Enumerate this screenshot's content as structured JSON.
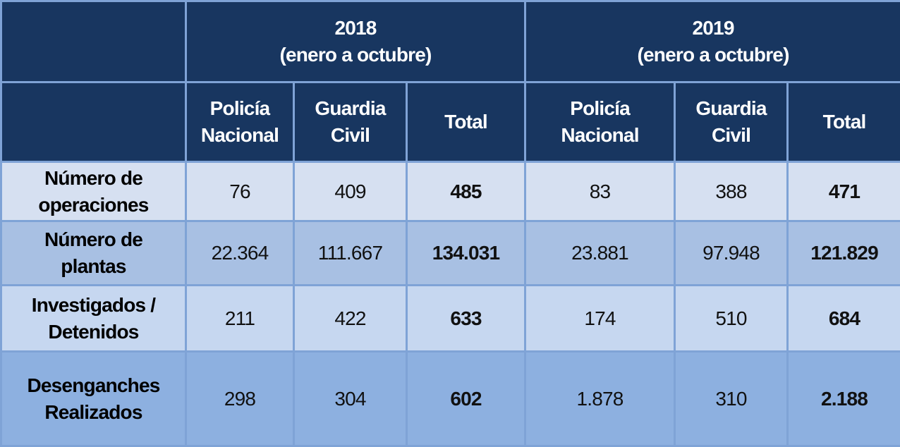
{
  "years": [
    {
      "year": "2018",
      "period": "(enero a octubre)"
    },
    {
      "year": "2019",
      "period": "(enero a octubre)"
    }
  ],
  "columns": [
    "Policía\nNacional",
    "Guardia\nCivil",
    "Total",
    "Policía\nNacional",
    "Guardia\nCivil",
    "Total"
  ],
  "rows": [
    {
      "label": "Número de\noperaciones",
      "values": [
        "76",
        "409",
        "485",
        "83",
        "388",
        "471"
      ]
    },
    {
      "label": "Número de\nplantas",
      "values": [
        "22.364",
        "111.667",
        "134.031",
        "23.881",
        "97.948",
        "121.829"
      ]
    },
    {
      "label": "Investigados /\nDetenidos",
      "values": [
        "211",
        "422",
        "633",
        "174",
        "510",
        "684"
      ]
    },
    {
      "label": "Desenganches\nRealizados",
      "values": [
        "298",
        "304",
        "602",
        "1.878",
        "310",
        "2.188"
      ]
    }
  ]
}
